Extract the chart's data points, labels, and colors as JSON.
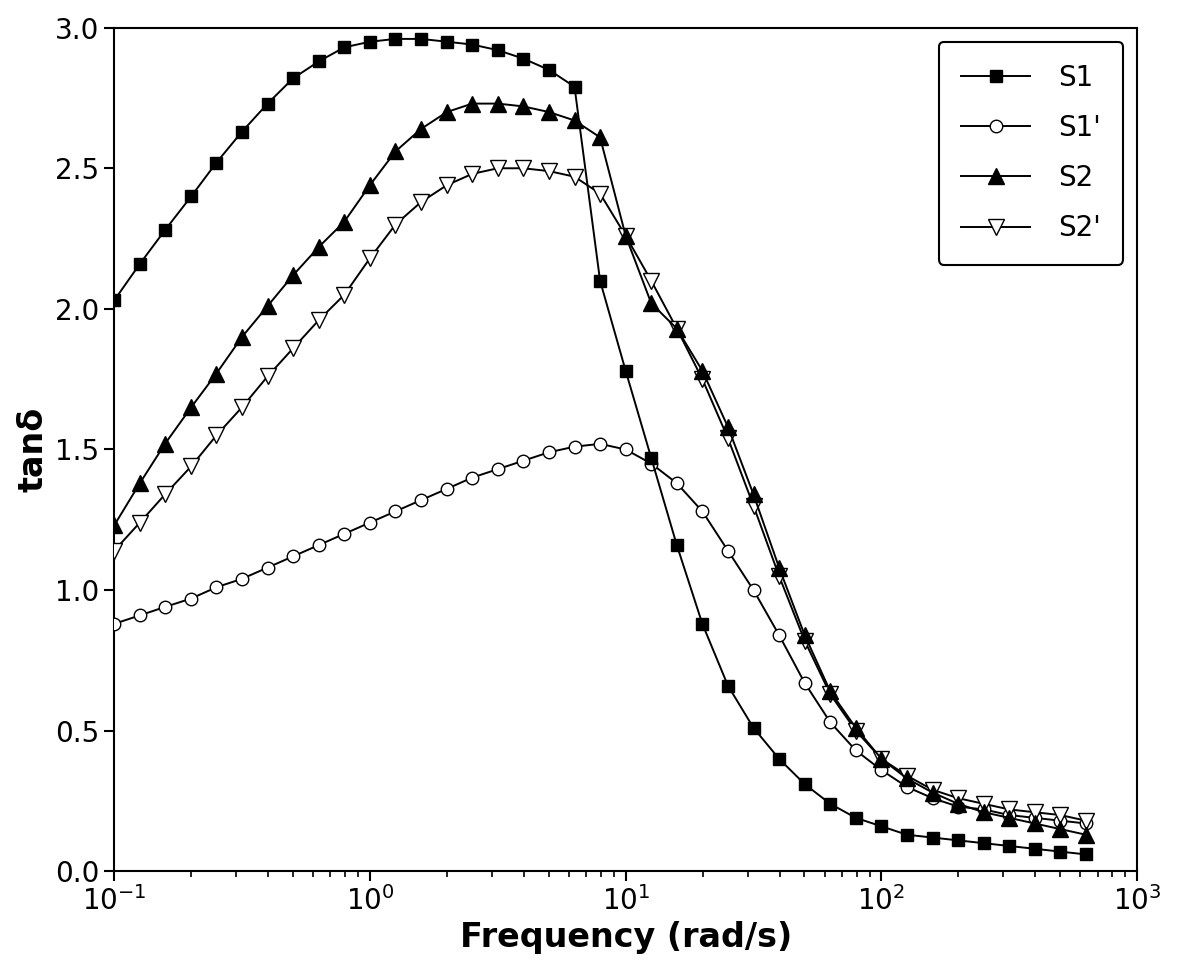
{
  "title": "",
  "xlabel": "Frequency (rad/s)",
  "ylabel": "tanδ",
  "ylim": [
    0.0,
    3.0
  ],
  "yticks": [
    0.0,
    0.5,
    1.0,
    1.5,
    2.0,
    2.5,
    3.0
  ],
  "S1_x": [
    0.1,
    0.126,
    0.158,
    0.2,
    0.251,
    0.316,
    0.398,
    0.501,
    0.631,
    0.794,
    1.0,
    1.259,
    1.585,
    2.0,
    2.512,
    3.162,
    3.981,
    5.012,
    6.31,
    7.943,
    10.0,
    12.59,
    15.85,
    19.95,
    25.12,
    31.62,
    39.81,
    50.12,
    63.1,
    79.43,
    100.0,
    125.9,
    158.5,
    199.5,
    251.2,
    316.2,
    398.1,
    501.2,
    631.0
  ],
  "S1_y": [
    2.03,
    2.16,
    2.28,
    2.4,
    2.52,
    2.63,
    2.73,
    2.82,
    2.88,
    2.93,
    2.95,
    2.96,
    2.96,
    2.95,
    2.94,
    2.92,
    2.89,
    2.85,
    2.79,
    2.1,
    1.78,
    1.47,
    1.16,
    0.88,
    0.66,
    0.51,
    0.4,
    0.31,
    0.24,
    0.19,
    0.16,
    0.13,
    0.12,
    0.11,
    0.1,
    0.09,
    0.08,
    0.07,
    0.06
  ],
  "S1p_x": [
    0.1,
    0.126,
    0.158,
    0.2,
    0.251,
    0.316,
    0.398,
    0.501,
    0.631,
    0.794,
    1.0,
    1.259,
    1.585,
    2.0,
    2.512,
    3.162,
    3.981,
    5.012,
    6.31,
    7.943,
    10.0,
    12.59,
    15.85,
    19.95,
    25.12,
    31.62,
    39.81,
    50.12,
    63.1,
    79.43,
    100.0,
    125.9,
    158.5,
    199.5,
    251.2,
    316.2,
    398.1,
    501.2,
    631.0
  ],
  "S1p_y": [
    0.88,
    0.91,
    0.94,
    0.97,
    1.01,
    1.04,
    1.08,
    1.12,
    1.16,
    1.2,
    1.24,
    1.28,
    1.32,
    1.36,
    1.4,
    1.43,
    1.46,
    1.49,
    1.51,
    1.52,
    1.5,
    1.45,
    1.38,
    1.28,
    1.14,
    1.0,
    0.84,
    0.67,
    0.53,
    0.43,
    0.36,
    0.3,
    0.26,
    0.23,
    0.22,
    0.2,
    0.19,
    0.18,
    0.17
  ],
  "S2_x": [
    0.1,
    0.126,
    0.158,
    0.2,
    0.251,
    0.316,
    0.398,
    0.501,
    0.631,
    0.794,
    1.0,
    1.259,
    1.585,
    2.0,
    2.512,
    3.162,
    3.981,
    5.012,
    6.31,
    7.943,
    10.0,
    12.59,
    15.85,
    19.95,
    25.12,
    31.62,
    39.81,
    50.12,
    63.1,
    79.43,
    100.0,
    125.9,
    158.5,
    199.5,
    251.2,
    316.2,
    398.1,
    501.2,
    631.0
  ],
  "S2_y": [
    1.23,
    1.38,
    1.52,
    1.65,
    1.77,
    1.9,
    2.01,
    2.12,
    2.22,
    2.31,
    2.44,
    2.56,
    2.64,
    2.7,
    2.73,
    2.73,
    2.72,
    2.7,
    2.67,
    2.61,
    2.26,
    2.02,
    1.93,
    1.78,
    1.58,
    1.34,
    1.08,
    0.84,
    0.64,
    0.51,
    0.4,
    0.33,
    0.28,
    0.24,
    0.21,
    0.19,
    0.17,
    0.15,
    0.13
  ],
  "S2p_x": [
    0.1,
    0.126,
    0.158,
    0.2,
    0.251,
    0.316,
    0.398,
    0.501,
    0.631,
    0.794,
    1.0,
    1.259,
    1.585,
    2.0,
    2.512,
    3.162,
    3.981,
    5.012,
    6.31,
    7.943,
    10.0,
    12.59,
    15.85,
    19.95,
    25.12,
    31.62,
    39.81,
    50.12,
    63.1,
    79.43,
    100.0,
    125.9,
    158.5,
    199.5,
    251.2,
    316.2,
    398.1,
    501.2,
    631.0
  ],
  "S2p_y": [
    1.14,
    1.24,
    1.34,
    1.44,
    1.55,
    1.65,
    1.76,
    1.86,
    1.96,
    2.05,
    2.18,
    2.3,
    2.38,
    2.44,
    2.48,
    2.5,
    2.5,
    2.49,
    2.47,
    2.41,
    2.26,
    2.1,
    1.93,
    1.75,
    1.54,
    1.3,
    1.05,
    0.82,
    0.63,
    0.5,
    0.4,
    0.34,
    0.29,
    0.26,
    0.24,
    0.22,
    0.21,
    0.2,
    0.18
  ],
  "line_color": "#000000",
  "marker_size_filled": 9,
  "marker_size_open": 9,
  "linewidth": 1.4,
  "legend_fontsize": 20,
  "axis_label_fontsize": 24,
  "tick_fontsize": 20
}
